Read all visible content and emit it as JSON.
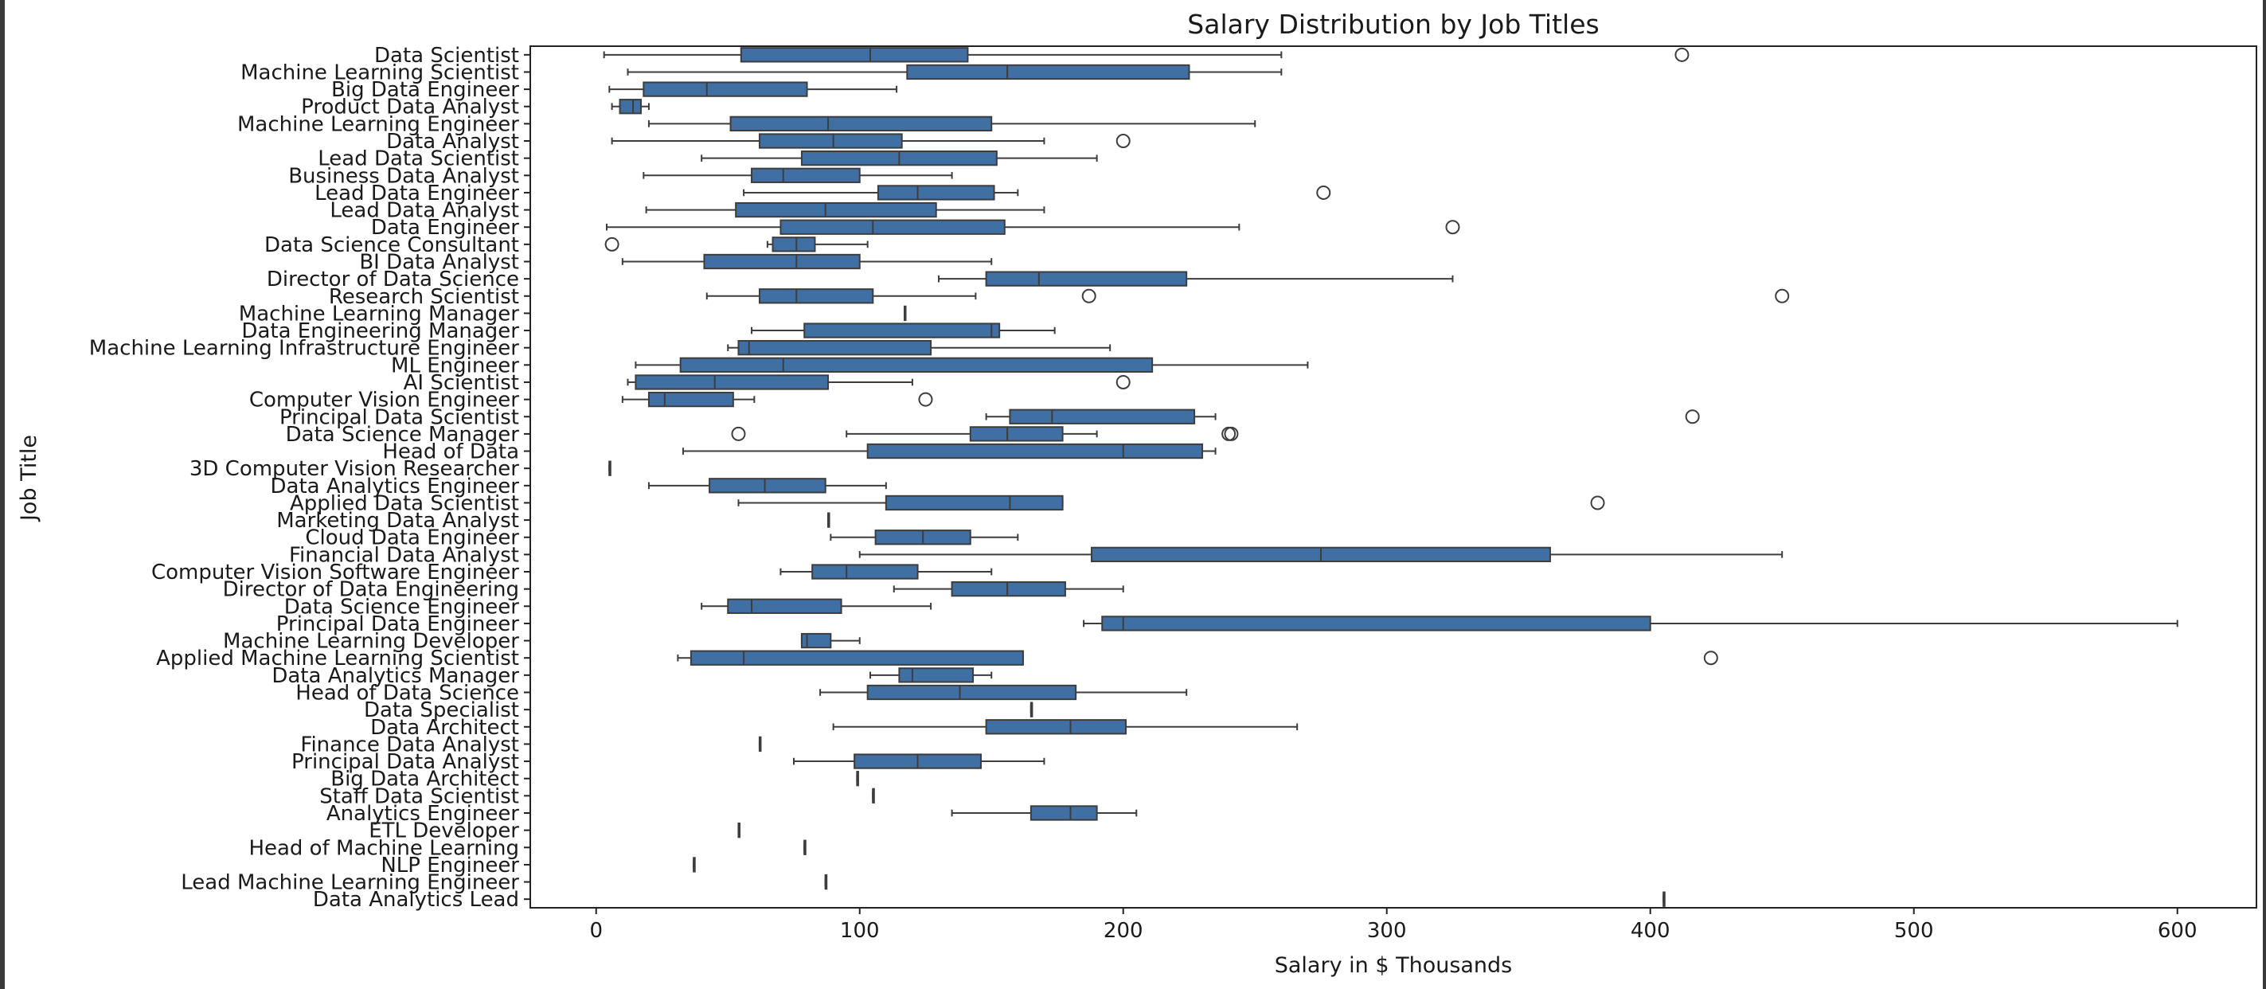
{
  "chart_data": {
    "type": "box",
    "orientation": "horizontal",
    "title": "Salary Distribution by Job Titles",
    "xlabel": "Salary in $ Thousands",
    "ylabel": "Job Title",
    "xlim": [
      -25,
      630
    ],
    "xticks": [
      0,
      100,
      200,
      300,
      400,
      500,
      600
    ],
    "grid": false,
    "box_color": "#3f6fa3",
    "line_color": "#3d3d3d",
    "categories": [
      "Data Scientist",
      "Machine Learning Scientist",
      "Big Data Engineer",
      "Product Data Analyst",
      "Machine Learning Engineer",
      "Data Analyst",
      "Lead Data Scientist",
      "Business Data Analyst",
      "Lead Data Engineer",
      "Lead Data Analyst",
      "Data Engineer",
      "Data Science Consultant",
      "BI Data Analyst",
      "Director of Data Science",
      "Research Scientist",
      "Machine Learning Manager",
      "Data Engineering Manager",
      "Machine Learning Infrastructure Engineer",
      "ML Engineer",
      "AI Scientist",
      "Computer Vision Engineer",
      "Principal Data Scientist",
      "Data Science Manager",
      "Head of Data",
      "3D Computer Vision Researcher",
      "Data Analytics Engineer",
      "Applied Data Scientist",
      "Marketing Data Analyst",
      "Cloud Data Engineer",
      "Financial Data Analyst",
      "Computer Vision Software Engineer",
      "Director of Data Engineering",
      "Data Science Engineer",
      "Principal Data Engineer",
      "Machine Learning Developer",
      "Applied Machine Learning Scientist",
      "Data Analytics Manager",
      "Head of Data Science",
      "Data Specialist",
      "Data Architect",
      "Finance Data Analyst",
      "Principal Data Analyst",
      "Big Data Architect",
      "Staff Data Scientist",
      "Analytics Engineer",
      "ETL Developer",
      "Head of Machine Learning",
      "NLP Engineer",
      "Lead Machine Learning Engineer",
      "Data Analytics Lead"
    ],
    "boxes": [
      {
        "min": 3,
        "q1": 55,
        "median": 104,
        "q3": 141,
        "max": 260,
        "outliers": [
          412
        ]
      },
      {
        "min": 12,
        "q1": 118,
        "median": 156,
        "q3": 225,
        "max": 260,
        "outliers": []
      },
      {
        "min": 5,
        "q1": 18,
        "median": 42,
        "q3": 80,
        "max": 114,
        "outliers": []
      },
      {
        "min": 6,
        "q1": 9,
        "median": 14,
        "q3": 17,
        "max": 20,
        "outliers": []
      },
      {
        "min": 20,
        "q1": 51,
        "median": 88,
        "q3": 150,
        "max": 250,
        "outliers": []
      },
      {
        "min": 6,
        "q1": 62,
        "median": 90,
        "q3": 116,
        "max": 170,
        "outliers": [
          200
        ]
      },
      {
        "min": 40,
        "q1": 78,
        "median": 115,
        "q3": 152,
        "max": 190,
        "outliers": []
      },
      {
        "min": 18,
        "q1": 59,
        "median": 71,
        "q3": 100,
        "max": 135,
        "outliers": []
      },
      {
        "min": 56,
        "q1": 107,
        "median": 122,
        "q3": 151,
        "max": 160,
        "outliers": [
          276
        ]
      },
      {
        "min": 19,
        "q1": 53,
        "median": 87,
        "q3": 129,
        "max": 170,
        "outliers": []
      },
      {
        "min": 4,
        "q1": 70,
        "median": 105,
        "q3": 155,
        "max": 244,
        "outliers": [
          325
        ]
      },
      {
        "min": 65,
        "q1": 67,
        "median": 76,
        "q3": 83,
        "max": 103,
        "outliers": [
          6
        ]
      },
      {
        "min": 10,
        "q1": 41,
        "median": 76,
        "q3": 100,
        "max": 150,
        "outliers": []
      },
      {
        "min": 130,
        "q1": 148,
        "median": 168,
        "q3": 224,
        "max": 325,
        "outliers": []
      },
      {
        "min": 42,
        "q1": 62,
        "median": 76,
        "q3": 105,
        "max": 144,
        "outliers": [
          187,
          450
        ]
      },
      {
        "min": 117,
        "q1": 117,
        "median": 117,
        "q3": 117,
        "max": 117,
        "outliers": []
      },
      {
        "min": 59,
        "q1": 79,
        "median": 150,
        "q3": 153,
        "max": 174,
        "outliers": []
      },
      {
        "min": 50,
        "q1": 54,
        "median": 58,
        "q3": 127,
        "max": 195,
        "outliers": []
      },
      {
        "min": 15,
        "q1": 32,
        "median": 71,
        "q3": 211,
        "max": 270,
        "outliers": []
      },
      {
        "min": 12,
        "q1": 15,
        "median": 45,
        "q3": 88,
        "max": 120,
        "outliers": [
          200
        ]
      },
      {
        "min": 10,
        "q1": 20,
        "median": 26,
        "q3": 52,
        "max": 60,
        "outliers": [
          125
        ]
      },
      {
        "min": 148,
        "q1": 157,
        "median": 173,
        "q3": 227,
        "max": 235,
        "outliers": [
          416
        ]
      },
      {
        "min": 95,
        "q1": 142,
        "median": 156,
        "q3": 177,
        "max": 190,
        "outliers": [
          54,
          240,
          241
        ]
      },
      {
        "min": 33,
        "q1": 103,
        "median": 200,
        "q3": 230,
        "max": 235,
        "outliers": []
      },
      {
        "min": 5,
        "q1": 5,
        "median": 5,
        "q3": 5,
        "max": 5,
        "outliers": []
      },
      {
        "min": 20,
        "q1": 43,
        "median": 64,
        "q3": 87,
        "max": 110,
        "outliers": []
      },
      {
        "min": 54,
        "q1": 110,
        "median": 157,
        "q3": 177,
        "max": 177,
        "outliers": [
          380
        ]
      },
      {
        "min": 88,
        "q1": 88,
        "median": 88,
        "q3": 88,
        "max": 88,
        "outliers": []
      },
      {
        "min": 89,
        "q1": 106,
        "median": 124,
        "q3": 142,
        "max": 160,
        "outliers": []
      },
      {
        "min": 100,
        "q1": 188,
        "median": 275,
        "q3": 362,
        "max": 450,
        "outliers": []
      },
      {
        "min": 70,
        "q1": 82,
        "median": 95,
        "q3": 122,
        "max": 150,
        "outliers": []
      },
      {
        "min": 113,
        "q1": 135,
        "median": 156,
        "q3": 178,
        "max": 200,
        "outliers": []
      },
      {
        "min": 40,
        "q1": 50,
        "median": 59,
        "q3": 93,
        "max": 127,
        "outliers": []
      },
      {
        "min": 185,
        "q1": 192,
        "median": 200,
        "q3": 400,
        "max": 600,
        "outliers": []
      },
      {
        "min": 78,
        "q1": 78,
        "median": 80,
        "q3": 89,
        "max": 100,
        "outliers": []
      },
      {
        "min": 31,
        "q1": 36,
        "median": 56,
        "q3": 162,
        "max": 162,
        "outliers": [
          423
        ]
      },
      {
        "min": 104,
        "q1": 115,
        "median": 120,
        "q3": 143,
        "max": 150,
        "outliers": []
      },
      {
        "min": 85,
        "q1": 103,
        "median": 138,
        "q3": 182,
        "max": 224,
        "outliers": []
      },
      {
        "min": 165,
        "q1": 165,
        "median": 165,
        "q3": 165,
        "max": 165,
        "outliers": []
      },
      {
        "min": 90,
        "q1": 148,
        "median": 180,
        "q3": 201,
        "max": 266,
        "outliers": []
      },
      {
        "min": 62,
        "q1": 62,
        "median": 62,
        "q3": 62,
        "max": 62,
        "outliers": []
      },
      {
        "min": 75,
        "q1": 98,
        "median": 122,
        "q3": 146,
        "max": 170,
        "outliers": []
      },
      {
        "min": 99,
        "q1": 99,
        "median": 99,
        "q3": 99,
        "max": 99,
        "outliers": []
      },
      {
        "min": 105,
        "q1": 105,
        "median": 105,
        "q3": 105,
        "max": 105,
        "outliers": []
      },
      {
        "min": 135,
        "q1": 165,
        "median": 180,
        "q3": 190,
        "max": 205,
        "outliers": []
      },
      {
        "min": 54,
        "q1": 54,
        "median": 54,
        "q3": 54,
        "max": 54,
        "outliers": []
      },
      {
        "min": 79,
        "q1": 79,
        "median": 79,
        "q3": 79,
        "max": 79,
        "outliers": []
      },
      {
        "min": 37,
        "q1": 37,
        "median": 37,
        "q3": 37,
        "max": 37,
        "outliers": []
      },
      {
        "min": 87,
        "q1": 87,
        "median": 87,
        "q3": 87,
        "max": 87,
        "outliers": []
      },
      {
        "min": 405,
        "q1": 405,
        "median": 405,
        "q3": 405,
        "max": 405,
        "outliers": []
      }
    ]
  }
}
